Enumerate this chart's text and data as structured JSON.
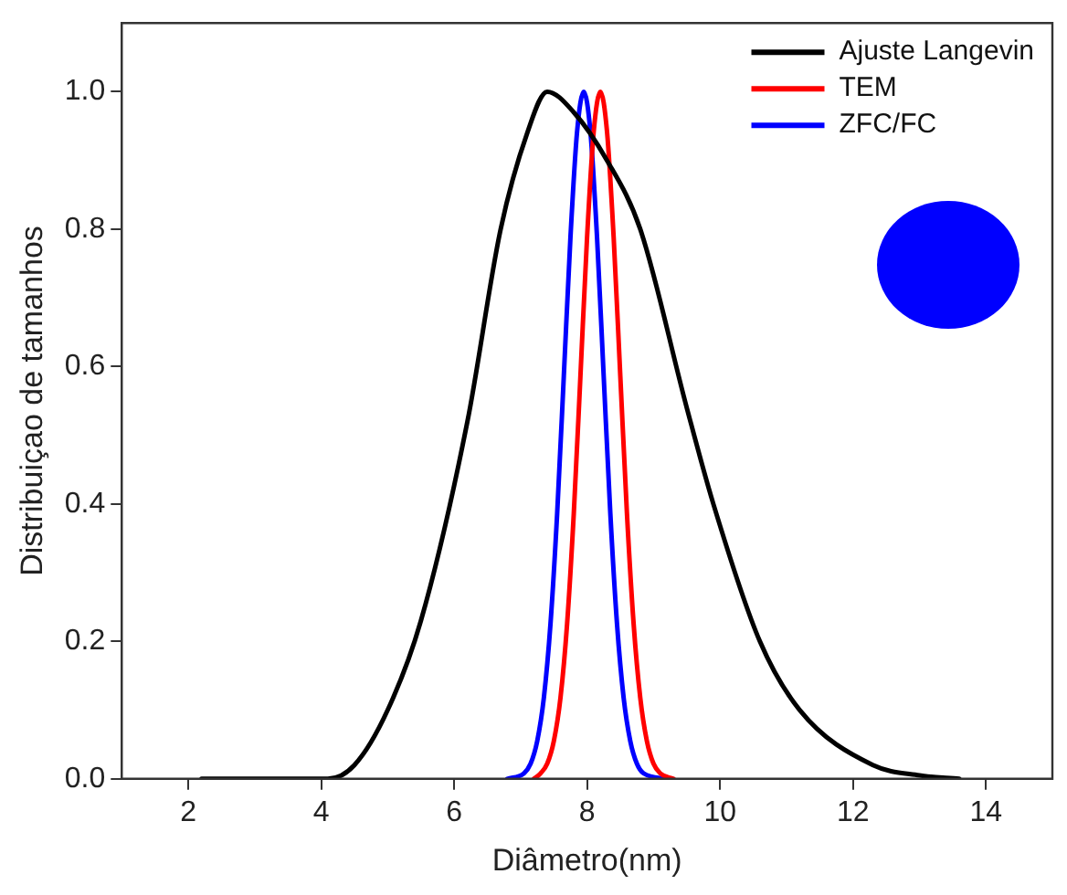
{
  "chart_data": {
    "type": "line",
    "xlabel": "Diâmetro(nm)",
    "ylabel": "Distribuiçao de tamanhos",
    "xlim": [
      1,
      15
    ],
    "ylim": [
      0,
      1.1
    ],
    "xticks": [
      2,
      4,
      6,
      8,
      10,
      12,
      14
    ],
    "yticks": [
      {
        "value": 0,
        "label": "0.0"
      },
      {
        "value": 0.2,
        "label": "0.2"
      },
      {
        "value": 0.4,
        "label": "0.4"
      },
      {
        "value": 0.6,
        "label": "0.6"
      },
      {
        "value": 0.8,
        "label": "0.8"
      },
      {
        "value": 1,
        "label": "1.0"
      }
    ],
    "grid": false,
    "legend": "top right",
    "marker": "none",
    "line_style": "solid",
    "series": [
      {
        "name": "Ajuste Langevin",
        "color": "#000000",
        "x": [
          2.2,
          3,
          4.1,
          4.5,
          5,
          5.5,
          6.2,
          6.7,
          7.1,
          7.4,
          7.8,
          8.3,
          8.8,
          9.5,
          9.9,
          10.6,
          11.2,
          12.3,
          13,
          13.6
        ],
        "values": [
          0,
          0,
          0,
          0.02,
          0.1,
          0.23,
          0.52,
          0.8,
          0.94,
          1,
          0.97,
          0.9,
          0.8,
          0.54,
          0.4,
          0.2,
          0.1,
          0.02,
          0.005,
          0
        ]
      },
      {
        "name": "TEM",
        "color": "#ff0000",
        "x": [
          7.2,
          7.3,
          7.4,
          7.5,
          7.6,
          7.7,
          7.8,
          7.9,
          8,
          8.1,
          8.2,
          8.3,
          8.4,
          8.5,
          8.6,
          8.7,
          8.8,
          8.9,
          9,
          9.1,
          9.3
        ],
        "values": [
          0,
          0.008,
          0.022,
          0.055,
          0.118,
          0.226,
          0.386,
          0.586,
          0.788,
          0.942,
          1,
          0.942,
          0.788,
          0.586,
          0.386,
          0.226,
          0.118,
          0.055,
          0.022,
          0.008,
          0
        ]
      },
      {
        "name": "ZFC/FC",
        "color": "#0000ff",
        "x": [
          6.8,
          7.05,
          7.15,
          7.25,
          7.35,
          7.45,
          7.55,
          7.65,
          7.75,
          7.85,
          7.95,
          8.05,
          8.15,
          8.25,
          8.35,
          8.45,
          8.55,
          8.65,
          8.75,
          8.85,
          9.2
        ],
        "values": [
          0,
          0.008,
          0.022,
          0.055,
          0.118,
          0.226,
          0.386,
          0.586,
          0.788,
          0.942,
          1,
          0.942,
          0.788,
          0.586,
          0.386,
          0.226,
          0.118,
          0.055,
          0.022,
          0.008,
          0
        ]
      }
    ]
  }
}
